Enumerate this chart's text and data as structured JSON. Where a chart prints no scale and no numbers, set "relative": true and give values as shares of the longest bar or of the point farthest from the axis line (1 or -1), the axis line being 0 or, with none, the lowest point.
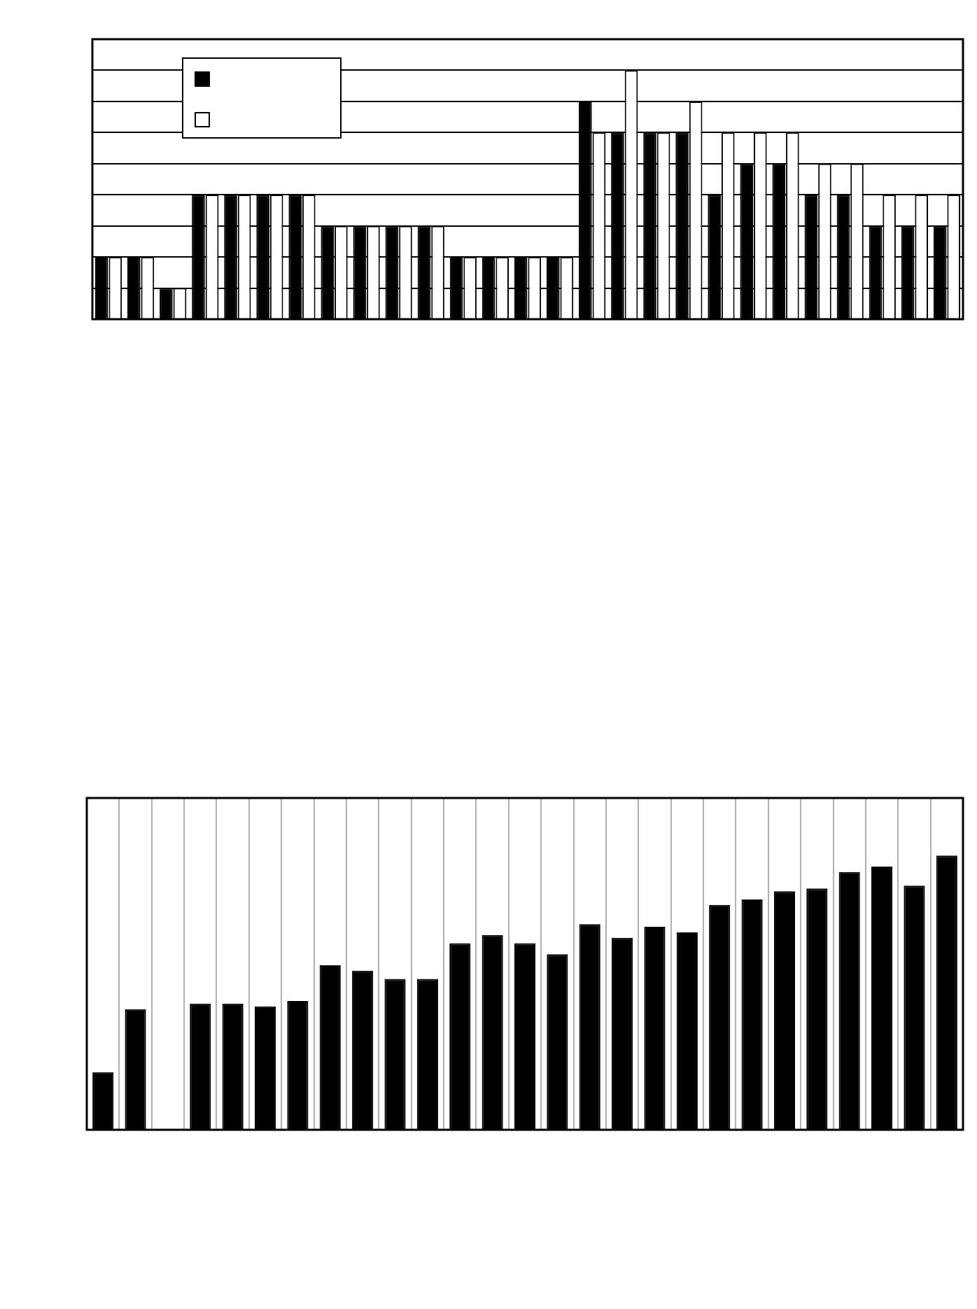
{
  "chart_data": [
    {
      "type": "bar",
      "relative": true,
      "categories": [
        null,
        null,
        null,
        null,
        null,
        null,
        null,
        null,
        null,
        null,
        null,
        null,
        null,
        null,
        null,
        null,
        null,
        null,
        null,
        null,
        null,
        null,
        null,
        null,
        null,
        null,
        null
      ],
      "grid": "y",
      "series": [
        {
          "color": "#000000",
          "values": [
            0.25,
            0.25,
            0.125,
            0.5,
            0.5,
            0.5,
            0.5,
            0.375,
            0.375,
            0.375,
            0.375,
            0.25,
            0.25,
            0.25,
            0.25,
            0.875,
            0.75,
            0.75,
            0.75,
            0.5,
            0.625,
            0.625,
            0.5,
            0.5,
            0.375,
            0.375,
            0.375
          ]
        },
        {
          "color": "#ffffff",
          "values": [
            0.25,
            0.25,
            0.125,
            0.5,
            0.5,
            0.5,
            0.5,
            0.375,
            0.375,
            0.375,
            0.375,
            0.25,
            0.25,
            0.25,
            0.25,
            0.75,
            1,
            0.75,
            0.875,
            0.75,
            0.75,
            0.75,
            0.625,
            0.625,
            0.5,
            0.5,
            0.5
          ]
        }
      ]
    },
    {
      "type": "bar",
      "relative": true,
      "categories": [
        null,
        null,
        null,
        null,
        null,
        null,
        null,
        null,
        null,
        null,
        null,
        null,
        null,
        null,
        null,
        null,
        null,
        null,
        null,
        null,
        null,
        null,
        null,
        null,
        null,
        null,
        null
      ],
      "grid": "x",
      "color": "#000000",
      "values": [
        0.21,
        0.44,
        null,
        0.46,
        0.46,
        0.45,
        0.47,
        0.6,
        0.58,
        0.55,
        0.55,
        0.68,
        0.71,
        0.68,
        0.64,
        0.75,
        0.7,
        0.74,
        0.72,
        0.82,
        0.84,
        0.87,
        0.88,
        0.94,
        0.96,
        0.89,
        1
      ]
    }
  ]
}
